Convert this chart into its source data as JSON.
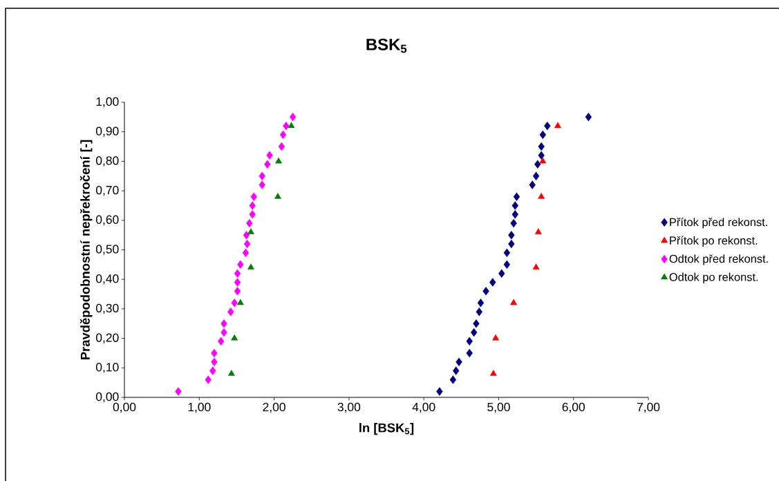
{
  "chart_data": {
    "type": "scatter",
    "title": "BSK$_{5}$",
    "xlabel": "ln [BSK$_{5}$]",
    "ylabel": "Pravděpodobnostní nepřekročení [-]",
    "xlim": [
      0,
      7
    ],
    "ylim": [
      0,
      1
    ],
    "xticks": [
      {
        "value": 0,
        "label": "0,00"
      },
      {
        "value": 1,
        "label": "1,00"
      },
      {
        "value": 2,
        "label": "2,00"
      },
      {
        "value": 3,
        "label": "3,00"
      },
      {
        "value": 4,
        "label": "4,00"
      },
      {
        "value": 5,
        "label": "5,00"
      },
      {
        "value": 6,
        "label": "6,00"
      },
      {
        "value": 7,
        "label": "7,00"
      }
    ],
    "yticks": [
      {
        "value": 0,
        "label": "0,00"
      },
      {
        "value": 0.1,
        "label": "0,10"
      },
      {
        "value": 0.2,
        "label": "0,20"
      },
      {
        "value": 0.3,
        "label": "0,30"
      },
      {
        "value": 0.4,
        "label": "0,40"
      },
      {
        "value": 0.5,
        "label": "0,50"
      },
      {
        "value": 0.6,
        "label": "0,60"
      },
      {
        "value": 0.7,
        "label": "0,70"
      },
      {
        "value": 0.8,
        "label": "0,80"
      },
      {
        "value": 0.9,
        "label": "0,90"
      },
      {
        "value": 1,
        "label": "1,00"
      }
    ],
    "legend": "right",
    "grid": false,
    "series": [
      {
        "name": "Přítok před rekonst.",
        "color": "#000080",
        "marker": "diamond",
        "x": [
          4.21,
          4.39,
          4.43,
          4.47,
          4.61,
          4.61,
          4.67,
          4.7,
          4.74,
          4.76,
          4.83,
          4.92,
          5.04,
          5.11,
          5.11,
          5.17,
          5.17,
          5.2,
          5.22,
          5.22,
          5.24,
          5.45,
          5.5,
          5.52,
          5.57,
          5.57,
          5.59,
          5.65,
          6.2
        ],
        "values": [
          0.02,
          0.06,
          0.09,
          0.12,
          0.15,
          0.19,
          0.22,
          0.25,
          0.29,
          0.32,
          0.36,
          0.39,
          0.42,
          0.45,
          0.49,
          0.52,
          0.55,
          0.59,
          0.62,
          0.65,
          0.68,
          0.72,
          0.75,
          0.79,
          0.82,
          0.85,
          0.89,
          0.92,
          0.95
        ]
      },
      {
        "name": "Přítok po rekonst.",
        "color": "#ff0000",
        "marker": "triangle",
        "x": [
          4.93,
          4.96,
          5.2,
          5.5,
          5.53,
          5.57,
          5.59,
          5.79
        ],
        "values": [
          0.08,
          0.2,
          0.32,
          0.44,
          0.56,
          0.68,
          0.8,
          0.92
        ]
      },
      {
        "name": "Odtok před rekonst.",
        "color": "#ff00ff",
        "marker": "diamond",
        "x": [
          0.72,
          1.12,
          1.18,
          1.2,
          1.2,
          1.29,
          1.33,
          1.33,
          1.42,
          1.47,
          1.51,
          1.51,
          1.51,
          1.55,
          1.62,
          1.64,
          1.63,
          1.67,
          1.71,
          1.71,
          1.73,
          1.84,
          1.84,
          1.91,
          1.94,
          2.1,
          2.12,
          2.16,
          2.25
        ],
        "values": [
          0.02,
          0.06,
          0.09,
          0.12,
          0.15,
          0.19,
          0.22,
          0.25,
          0.29,
          0.32,
          0.36,
          0.39,
          0.42,
          0.45,
          0.49,
          0.52,
          0.55,
          0.59,
          0.62,
          0.65,
          0.68,
          0.72,
          0.75,
          0.79,
          0.82,
          0.85,
          0.89,
          0.92,
          0.95
        ]
      },
      {
        "name": "Odtok po rekonst.",
        "color": "#008000",
        "marker": "triangle",
        "x": [
          1.43,
          1.47,
          1.55,
          1.69,
          1.69,
          2.05,
          2.06,
          2.23
        ],
        "values": [
          0.08,
          0.2,
          0.32,
          0.44,
          0.56,
          0.68,
          0.8,
          0.92
        ]
      }
    ]
  }
}
